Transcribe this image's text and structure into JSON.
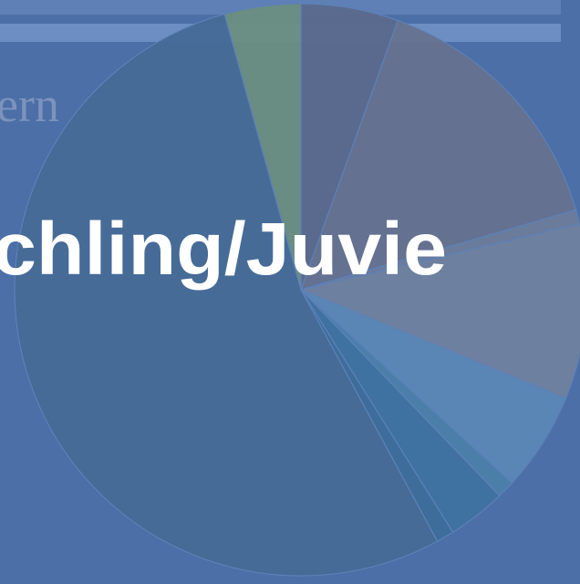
{
  "chart_data": {
    "type": "pie",
    "title": "chling/Juvie",
    "subtitle": "ern",
    "values": [
      5.5,
      15,
      0.8,
      9.9,
      5.6,
      1,
      3.3,
      1,
      53.6,
      4.3
    ],
    "colors": [
      "#5b6a8d",
      "#677290",
      "#6d7c9c",
      "#70819f",
      "#5a88b6",
      "#4b80ab",
      "#3f72a1",
      "#3e6d9b",
      "#466b97",
      "#6b8e82"
    ]
  }
}
